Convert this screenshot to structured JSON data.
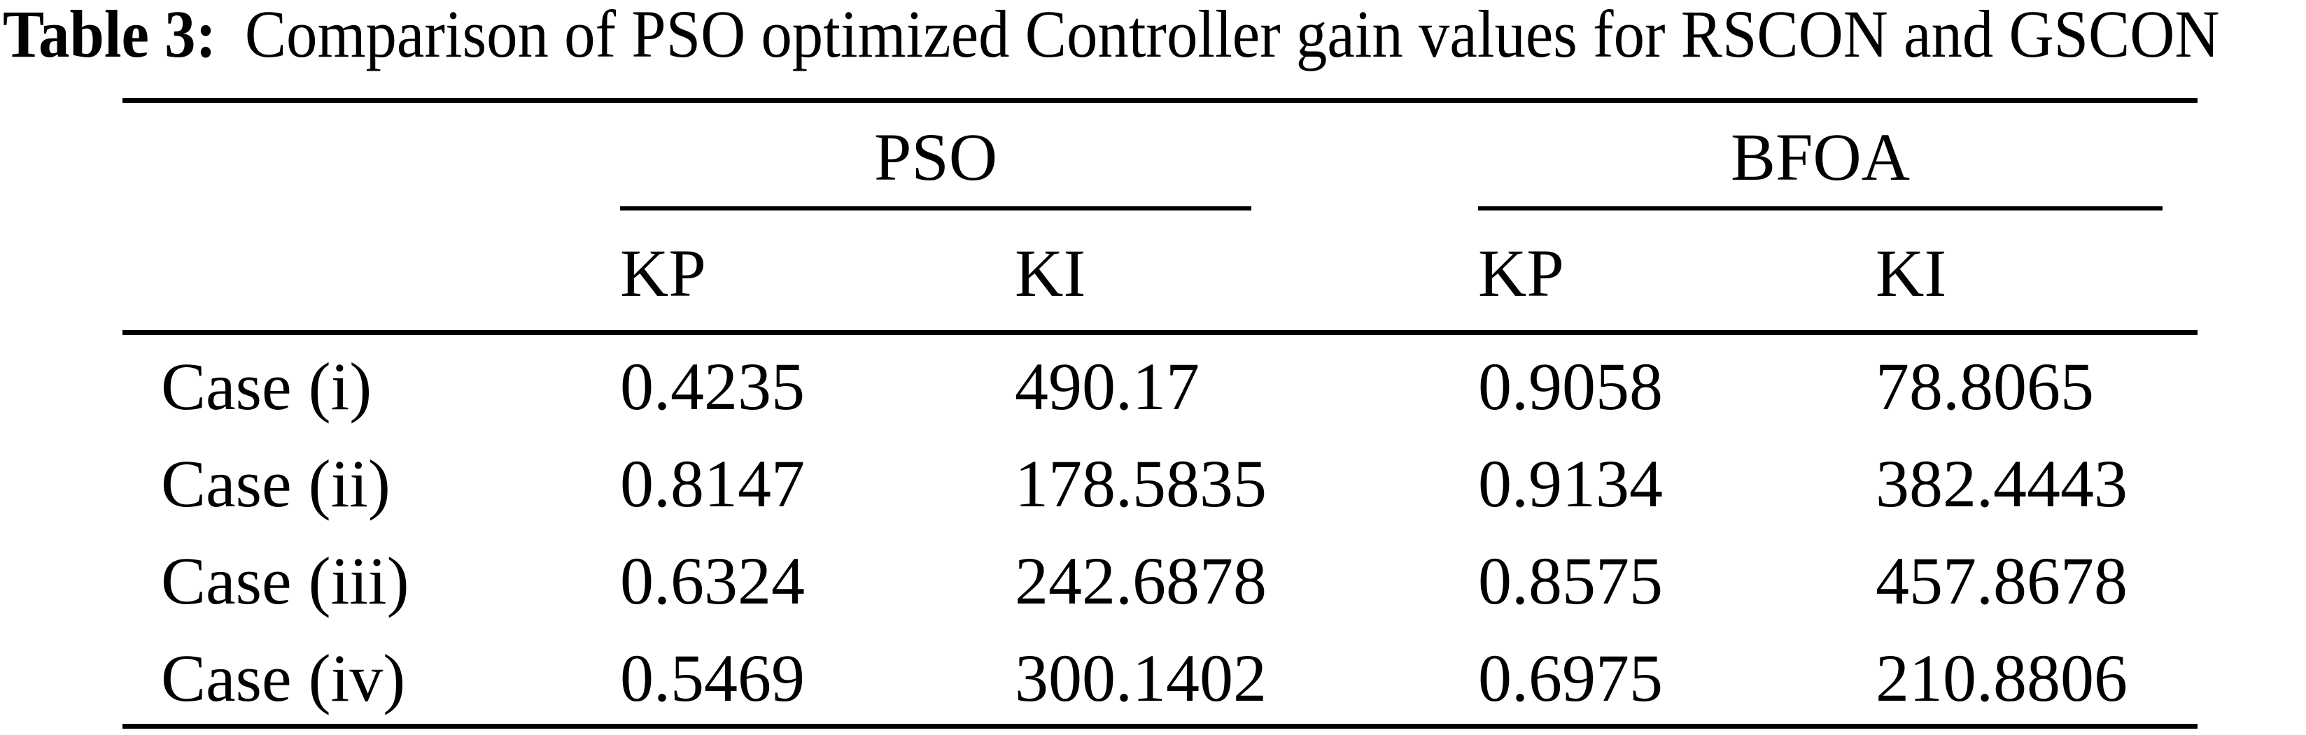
{
  "caption": {
    "label": "Table 3:",
    "text": "Comparison of PSO optimized Controller gain values for RSCON and GSCON"
  },
  "table": {
    "groups": [
      {
        "label": "PSO"
      },
      {
        "label": "BFOA"
      }
    ],
    "subheaders": [
      "KP",
      "KI",
      "KP",
      "KI"
    ],
    "rows": [
      {
        "label": "Case (i)",
        "values": [
          "0.4235",
          "490.17",
          "0.9058",
          "78.8065"
        ]
      },
      {
        "label": "Case (ii)",
        "values": [
          "0.8147",
          "178.5835",
          "0.9134",
          "382.4443"
        ]
      },
      {
        "label": "Case (iii)",
        "values": [
          "0.6324",
          "242.6878",
          "0.8575",
          "457.8678"
        ]
      },
      {
        "label": "Case (iv)",
        "values": [
          "0.5469",
          "300.1402",
          "0.6975",
          "210.8806"
        ]
      }
    ]
  },
  "chart_data": {
    "type": "table",
    "title": "Table 3: Comparison of PSO optimized Controller gain values for RSCON and GSCON",
    "column_groups": [
      "PSO",
      "BFOA"
    ],
    "columns": [
      "Case",
      "PSO KP",
      "PSO KI",
      "BFOA KP",
      "BFOA KI"
    ],
    "rows": [
      [
        "Case (i)",
        0.4235,
        490.17,
        0.9058,
        78.8065
      ],
      [
        "Case (ii)",
        0.8147,
        178.5835,
        0.9134,
        382.4443
      ],
      [
        "Case (iii)",
        0.6324,
        242.6878,
        0.8575,
        457.8678
      ],
      [
        "Case (iv)",
        0.5469,
        300.1402,
        0.6975,
        210.8806
      ]
    ]
  },
  "colors": {
    "text": "#000000",
    "background": "#ffffff",
    "rule": "#000000"
  }
}
